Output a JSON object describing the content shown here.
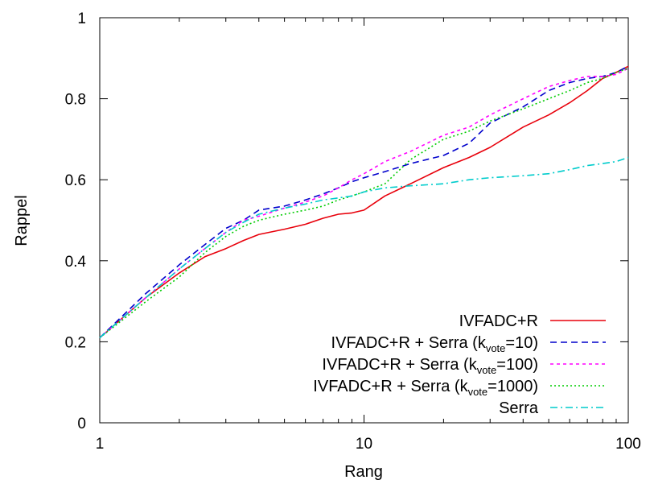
{
  "chart_data": {
    "type": "line",
    "title": "",
    "xlabel": "Rang",
    "ylabel": "Rappel",
    "xscale": "log",
    "xlim": [
      1,
      100
    ],
    "ylim": [
      0,
      1
    ],
    "xticks": [
      1,
      10,
      100
    ],
    "yticks": [
      0,
      0.2,
      0.4,
      0.6,
      0.8,
      1
    ],
    "xtick_labels": [
      "1",
      "10",
      "100"
    ],
    "ytick_labels": [
      "0",
      "0.2",
      "0.4",
      "0.6",
      "0.8",
      "1"
    ],
    "grid": false,
    "legend_position": "bottom-right",
    "series": [
      {
        "name": "IVFADC+R",
        "legend": {
          "pre": "IVFADC+R",
          "sub": "",
          "post": ""
        },
        "color": "#e8000b",
        "dash": "",
        "x": [
          1,
          1.5,
          2,
          2.5,
          3,
          3.5,
          4,
          5,
          6,
          7,
          8,
          9,
          10,
          12,
          15,
          20,
          25,
          30,
          40,
          50,
          60,
          70,
          80,
          90,
          100
        ],
        "y": [
          0.21,
          0.31,
          0.37,
          0.41,
          0.43,
          0.45,
          0.465,
          0.478,
          0.49,
          0.505,
          0.515,
          0.518,
          0.525,
          0.56,
          0.59,
          0.63,
          0.655,
          0.68,
          0.73,
          0.76,
          0.79,
          0.82,
          0.85,
          0.865,
          0.88
        ]
      },
      {
        "name": "IVFADC+R + Serra (kvote=10)",
        "legend": {
          "pre": "IVFADC+R + Serra (k",
          "sub": "vote",
          "post": "=10)"
        },
        "color": "#0000cc",
        "dash": "8,5",
        "x": [
          1,
          1.5,
          2,
          2.5,
          3,
          3.5,
          4,
          5,
          6,
          7,
          8,
          9,
          10,
          12,
          15,
          20,
          25,
          30,
          40,
          50,
          60,
          70,
          80,
          90,
          100
        ],
        "y": [
          0.21,
          0.32,
          0.39,
          0.44,
          0.48,
          0.5,
          0.525,
          0.535,
          0.55,
          0.565,
          0.58,
          0.595,
          0.605,
          0.62,
          0.64,
          0.66,
          0.69,
          0.74,
          0.78,
          0.82,
          0.84,
          0.85,
          0.855,
          0.865,
          0.88
        ]
      },
      {
        "name": "IVFADC+R + Serra (kvote=100)",
        "legend": {
          "pre": "IVFADC+R + Serra (k",
          "sub": "vote",
          "post": "=100)"
        },
        "color": "#ff00ff",
        "dash": "4,4",
        "x": [
          1,
          1.5,
          2,
          2.5,
          3,
          3.5,
          4,
          5,
          6,
          7,
          8,
          9,
          10,
          12,
          15,
          20,
          25,
          30,
          40,
          50,
          60,
          70,
          80,
          90,
          100
        ],
        "y": [
          0.21,
          0.31,
          0.38,
          0.43,
          0.47,
          0.5,
          0.51,
          0.53,
          0.545,
          0.56,
          0.58,
          0.6,
          0.615,
          0.645,
          0.67,
          0.71,
          0.73,
          0.76,
          0.8,
          0.83,
          0.845,
          0.855,
          0.855,
          0.86,
          0.875
        ]
      },
      {
        "name": "IVFADC+R + Serra (kvote=1000)",
        "legend": {
          "pre": "IVFADC+R + Serra (k",
          "sub": "vote",
          "post": "=1000)"
        },
        "color": "#00cc00",
        "dash": "2,3",
        "x": [
          1,
          1.5,
          2,
          2.5,
          3,
          3.5,
          4,
          5,
          6,
          7,
          8,
          9,
          10,
          12,
          15,
          20,
          25,
          30,
          40,
          50,
          60,
          70,
          80,
          90,
          100
        ],
        "y": [
          0.21,
          0.3,
          0.36,
          0.42,
          0.46,
          0.485,
          0.5,
          0.515,
          0.525,
          0.535,
          0.55,
          0.56,
          0.57,
          0.59,
          0.65,
          0.7,
          0.72,
          0.745,
          0.775,
          0.8,
          0.82,
          0.84,
          0.85,
          0.865,
          0.875
        ]
      },
      {
        "name": "Serra",
        "legend": {
          "pre": "Serra",
          "sub": "",
          "post": ""
        },
        "color": "#00cccc",
        "dash": "9,4,2,4",
        "x": [
          1,
          1.5,
          2,
          2.5,
          3,
          3.5,
          4,
          5,
          6,
          7,
          8,
          9,
          10,
          12,
          15,
          20,
          25,
          30,
          40,
          50,
          60,
          70,
          80,
          90,
          100
        ],
        "y": [
          0.21,
          0.31,
          0.38,
          0.43,
          0.47,
          0.495,
          0.515,
          0.53,
          0.54,
          0.55,
          0.555,
          0.56,
          0.57,
          0.58,
          0.585,
          0.59,
          0.6,
          0.605,
          0.61,
          0.615,
          0.625,
          0.635,
          0.64,
          0.645,
          0.655
        ]
      }
    ]
  }
}
